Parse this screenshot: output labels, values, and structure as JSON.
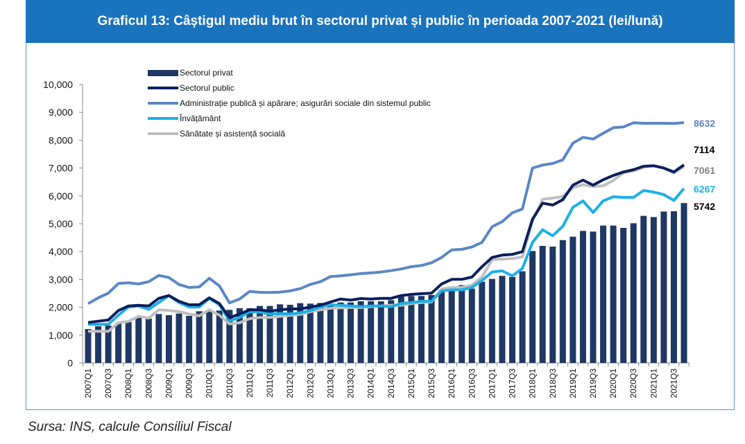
{
  "title": "Graficul 13: Câștigul mediu brut în sectorul privat și public în perioada 2007-2021 (lei/lună)",
  "source": "Sursa: INS, calcule Consiliul Fiscal",
  "chart_data": {
    "type": "bar+line",
    "title": "Graficul 13: Câștigul mediu brut în sectorul privat și public în perioada 2007-2021 (lei/lună)",
    "xlabel": "",
    "ylabel": "",
    "ylim": [
      0,
      10000
    ],
    "y_ticks": [
      "0",
      "1,000",
      "2,000",
      "3,000",
      "4,000",
      "5,000",
      "6,000",
      "7,000",
      "8,000",
      "9,000",
      "10,000"
    ],
    "x_tick_labels": [
      "2007Q1",
      "2007Q3",
      "2008Q1",
      "2008Q3",
      "2009Q1",
      "2009Q3",
      "2010Q1",
      "2010Q3",
      "2011Q1",
      "2011Q3",
      "2012Q1",
      "2012Q3",
      "2013Q1",
      "2013Q3",
      "2014Q1",
      "2014Q3",
      "2015Q1",
      "2015Q3",
      "2016Q1",
      "2016Q3",
      "2017Q1",
      "2017Q3",
      "2018Q1",
      "2018Q3",
      "2019Q1",
      "2019Q3",
      "2020Q1",
      "2020Q3",
      "2021Q1",
      "2021Q3"
    ],
    "period": "quarterly, 2007Q1-2021Q4",
    "grid": false,
    "legend_position": "top-left",
    "series": [
      {
        "name": "Sectorul privat",
        "kind": "bar",
        "color": "#1f3864",
        "values": [
          1219,
          1318,
          1343,
          1426,
          1468,
          1617,
          1592,
          1758,
          1716,
          1774,
          1692,
          1857,
          1899,
          1882,
          1907,
          1965,
          1965,
          2048,
          2048,
          2106,
          2090,
          2148,
          2131,
          2156,
          2131,
          2172,
          2172,
          2214,
          2214,
          2214,
          2255,
          2380,
          2405,
          2405,
          2438,
          2628,
          2587,
          2794,
          2670,
          2918,
          3018,
          3126,
          3085,
          3292,
          4022,
          4204,
          4179,
          4411,
          4536,
          4743,
          4718,
          4934,
          4934,
          4851,
          5017,
          5282,
          5240,
          5439,
          5448,
          5742
        ],
        "end_label": "5742",
        "end_label_color": "#000000"
      },
      {
        "name": "Sectorul public",
        "kind": "line",
        "color": "#0b1f5c",
        "values": [
          1451,
          1501,
          1542,
          1882,
          2048,
          2073,
          2048,
          2322,
          2421,
          2214,
          2090,
          2090,
          2338,
          2131,
          1625,
          1758,
          1907,
          1907,
          1857,
          1907,
          1940,
          1940,
          2007,
          2073,
          2189,
          2297,
          2255,
          2313,
          2297,
          2322,
          2322,
          2421,
          2463,
          2488,
          2504,
          2836,
          3002,
          3002,
          3085,
          3458,
          3789,
          3872,
          3897,
          3997,
          5158,
          5738,
          5672,
          5863,
          6385,
          6567,
          6385,
          6580,
          6733,
          6858,
          6940,
          7065,
          7081,
          7000,
          6858,
          7114
        ],
        "end_label": "7114",
        "end_label_color": "#000000"
      },
      {
        "name": "Administrație publică și apărare; asigurări sociale din sistemul public",
        "kind": "line",
        "color": "#5b87c5",
        "values": [
          2131,
          2338,
          2504,
          2852,
          2877,
          2836,
          2918,
          3142,
          3068,
          2819,
          2711,
          2728,
          3043,
          2769,
          2156,
          2297,
          2570,
          2537,
          2529,
          2545,
          2587,
          2670,
          2819,
          2918,
          3101,
          3126,
          3167,
          3209,
          3234,
          3267,
          3317,
          3375,
          3458,
          3499,
          3599,
          3789,
          4063,
          4080,
          4163,
          4328,
          4892,
          5075,
          5390,
          5531,
          6998,
          7106,
          7164,
          7297,
          7894,
          8101,
          8043,
          8250,
          8449,
          8474,
          8624,
          8607,
          8607,
          8607,
          8599,
          8632
        ],
        "end_label": "8632",
        "end_label_color": "#5b87c5"
      },
      {
        "name": "Învățământ",
        "kind": "line",
        "color": "#1cb0e6",
        "values": [
          1385,
          1385,
          1385,
          1716,
          2007,
          2048,
          1924,
          2172,
          2421,
          2172,
          2007,
          2007,
          2322,
          2090,
          1509,
          1634,
          1841,
          1824,
          1758,
          1774,
          1758,
          1799,
          1882,
          2007,
          2090,
          2073,
          2048,
          2023,
          2048,
          2048,
          2023,
          2131,
          2172,
          2214,
          2214,
          2587,
          2628,
          2628,
          2711,
          2960,
          3267,
          3309,
          3126,
          3392,
          4328,
          4784,
          4569,
          4909,
          5589,
          5821,
          5406,
          5821,
          5970,
          5945,
          5945,
          6194,
          6136,
          6048,
          5837,
          6267
        ],
        "end_label": "6267",
        "end_label_color": "#1cb0e6"
      },
      {
        "name": "Sănătate și asistență socială",
        "kind": "line",
        "color": "#bfbfbf",
        "values": [
          1136,
          1136,
          1136,
          1443,
          1493,
          1675,
          1609,
          1907,
          1882,
          1841,
          1758,
          1692,
          1907,
          1716,
          1401,
          1443,
          1592,
          1634,
          1634,
          1675,
          1708,
          1741,
          1841,
          1907,
          1965,
          1980,
          1990,
          1990,
          2023,
          2048,
          2073,
          2073,
          2131,
          2172,
          2189,
          2653,
          2711,
          2711,
          2794,
          3085,
          3706,
          3731,
          3748,
          3814,
          5100,
          5879,
          5920,
          5978,
          6294,
          6401,
          6335,
          6360,
          6551,
          6833,
          6899,
          7023,
          7081,
          7000,
          6816,
          7061
        ],
        "end_label": "7061",
        "end_label_color": "#808080"
      }
    ]
  }
}
